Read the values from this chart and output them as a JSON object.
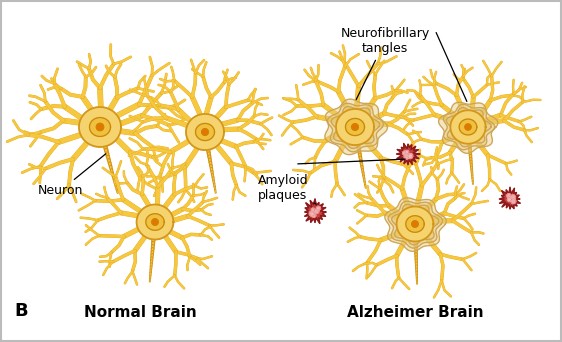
{
  "bg_color": "#ffffff",
  "border_color": "#bbbbbb",
  "soma_fill": "#f5d470",
  "soma_edge": "#d4961a",
  "soma_grad_inner": "#fce890",
  "nucleus_fill": "#f0c040",
  "nucleus_edge": "#c8880a",
  "nucleus_inner_fill": "#e07800",
  "dendrite_fill": "#e8a818",
  "dendrite_light": "#f5c840",
  "axon_fill": "#d4961a",
  "tangle_line": "#c8a050",
  "tangle_fill": "#e8c878",
  "plaque_fill": "#c03030",
  "plaque_edge": "#8b1a1a",
  "plaque_dot": "#e88080",
  "plaque_dot_inner": "#f5c0c0",
  "label_normal_brain": "Normal Brain",
  "label_alz_brain": "Alzheimer Brain",
  "label_neuron": "Neuron",
  "label_plaques": "Amyloid\nplaques",
  "label_tangles": "Neurofibrillary\ntangles",
  "label_B": "B",
  "font_size_labels": 9,
  "font_size_bottom": 11
}
